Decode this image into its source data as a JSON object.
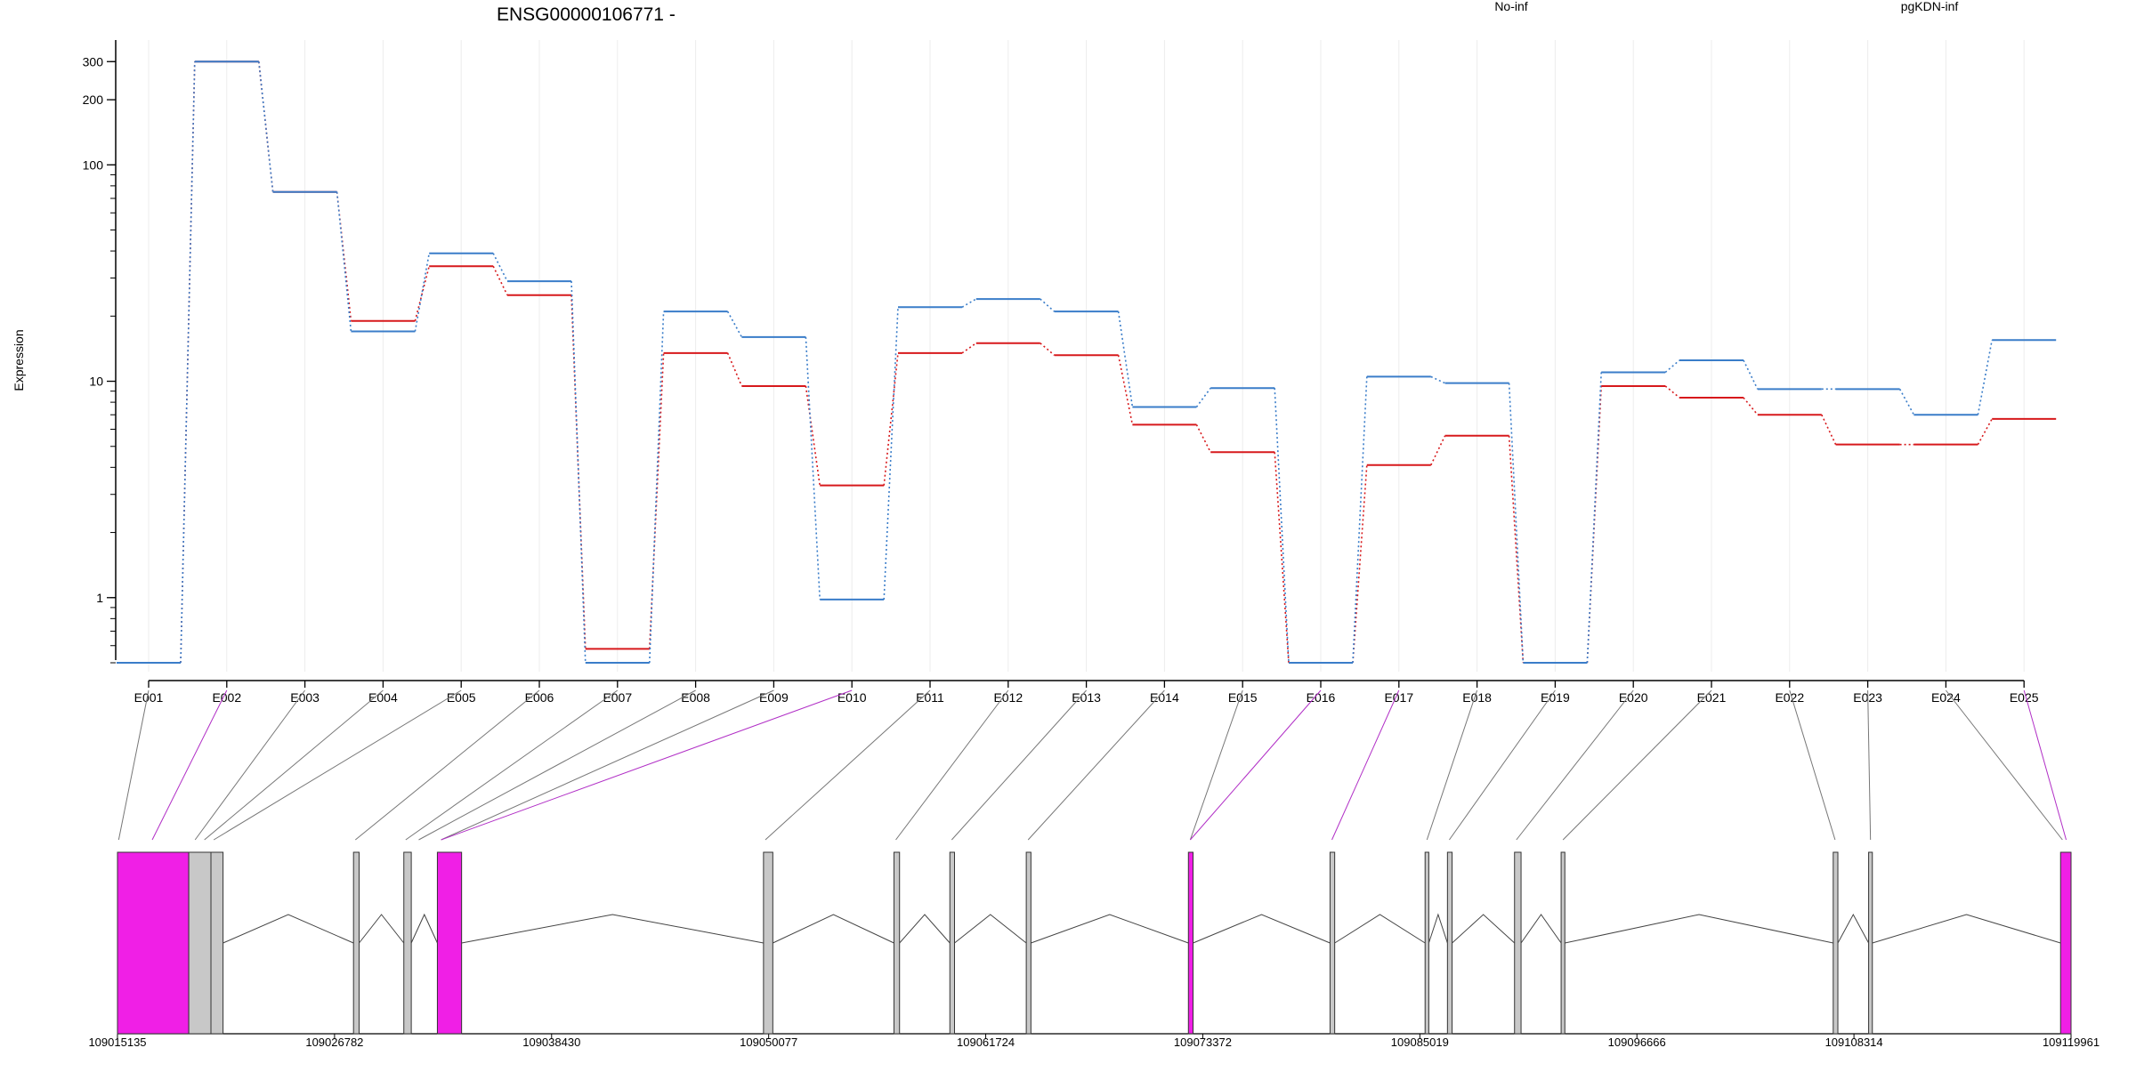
{
  "chart_data": {
    "type": "line",
    "title": "ENSG00000106771 -",
    "ylabel": "Expression",
    "y_scale": "log",
    "y_ticks": [
      1,
      10,
      100,
      200,
      300
    ],
    "ylim": [
      0.5,
      360
    ],
    "grid": "vertical",
    "legend_position": "top",
    "categories": [
      "E001",
      "E002",
      "E003",
      "E004",
      "E005",
      "E006",
      "E007",
      "E008",
      "E009",
      "E010",
      "E011",
      "E012",
      "E013",
      "E014",
      "E015",
      "E016",
      "E017",
      "E018",
      "E019",
      "E020",
      "E021",
      "E022",
      "E023",
      "E024",
      "E025"
    ],
    "series": [
      {
        "name": "No-inf",
        "color": "#d7191c",
        "values": [
          0.5,
          300,
          75,
          19,
          34,
          25,
          0.58,
          13.5,
          9.5,
          3.3,
          13.5,
          15,
          13.2,
          6.3,
          4.7,
          0.5,
          4.1,
          5.6,
          0.5,
          9.5,
          8.4,
          7,
          5.1,
          5.1,
          6.7
        ]
      },
      {
        "name": "pgKDN-inf",
        "color": "#3a7dc9",
        "values": [
          0.5,
          300,
          75,
          17,
          39,
          29,
          0.5,
          21,
          16,
          0.98,
          22,
          24,
          21,
          7.6,
          9.3,
          0.5,
          10.5,
          9.8,
          0.5,
          11,
          12.5,
          9.2,
          9.2,
          7,
          15.5
        ]
      }
    ],
    "gene_track": {
      "coordinate_ticks": [
        109015135,
        109026782,
        109038430,
        109050077,
        109061724,
        109073372,
        109085019,
        109096666,
        109108314,
        109119961
      ],
      "start": 109015135,
      "end": 109119961,
      "highlight_color": "#f01fe6",
      "exon_color": "#c8c8c8",
      "exons": [
        {
          "start": 109015135,
          "end": 109018960,
          "highlight": true
        },
        {
          "start": 109018960,
          "end": 109020150,
          "highlight": false
        },
        {
          "start": 109020150,
          "end": 109020800,
          "highlight": false
        },
        {
          "start": 109027800,
          "end": 109028100,
          "highlight": false
        },
        {
          "start": 109030500,
          "end": 109030900,
          "highlight": false
        },
        {
          "start": 109032300,
          "end": 109033600,
          "highlight": true
        },
        {
          "start": 109049800,
          "end": 109050300,
          "highlight": false
        },
        {
          "start": 109056800,
          "end": 109057100,
          "highlight": false
        },
        {
          "start": 109059800,
          "end": 109060050,
          "highlight": false
        },
        {
          "start": 109063900,
          "end": 109064150,
          "highlight": false
        },
        {
          "start": 109072600,
          "end": 109072850,
          "highlight": true
        },
        {
          "start": 109080200,
          "end": 109080450,
          "highlight": false
        },
        {
          "start": 109085300,
          "end": 109085500,
          "highlight": false
        },
        {
          "start": 109086500,
          "end": 109086750,
          "highlight": false
        },
        {
          "start": 109090100,
          "end": 109090450,
          "highlight": false
        },
        {
          "start": 109092600,
          "end": 109092800,
          "highlight": false
        },
        {
          "start": 109107200,
          "end": 109107450,
          "highlight": false
        },
        {
          "start": 109109100,
          "end": 109109300,
          "highlight": false
        },
        {
          "start": 109119400,
          "end": 109119961,
          "highlight": true
        }
      ],
      "exon_links": [
        109015200,
        109017000,
        109019300,
        109019800,
        109020300,
        109027900,
        109030600,
        109031300,
        109032500,
        109032500,
        109049900,
        109056900,
        109059900,
        109064000,
        109072700,
        109072700,
        109080300,
        109085400,
        109086600,
        109090200,
        109092700,
        109107300,
        109109200,
        109119500,
        109119700
      ],
      "highlight_links": [
        1,
        9,
        15,
        16,
        24
      ]
    }
  }
}
